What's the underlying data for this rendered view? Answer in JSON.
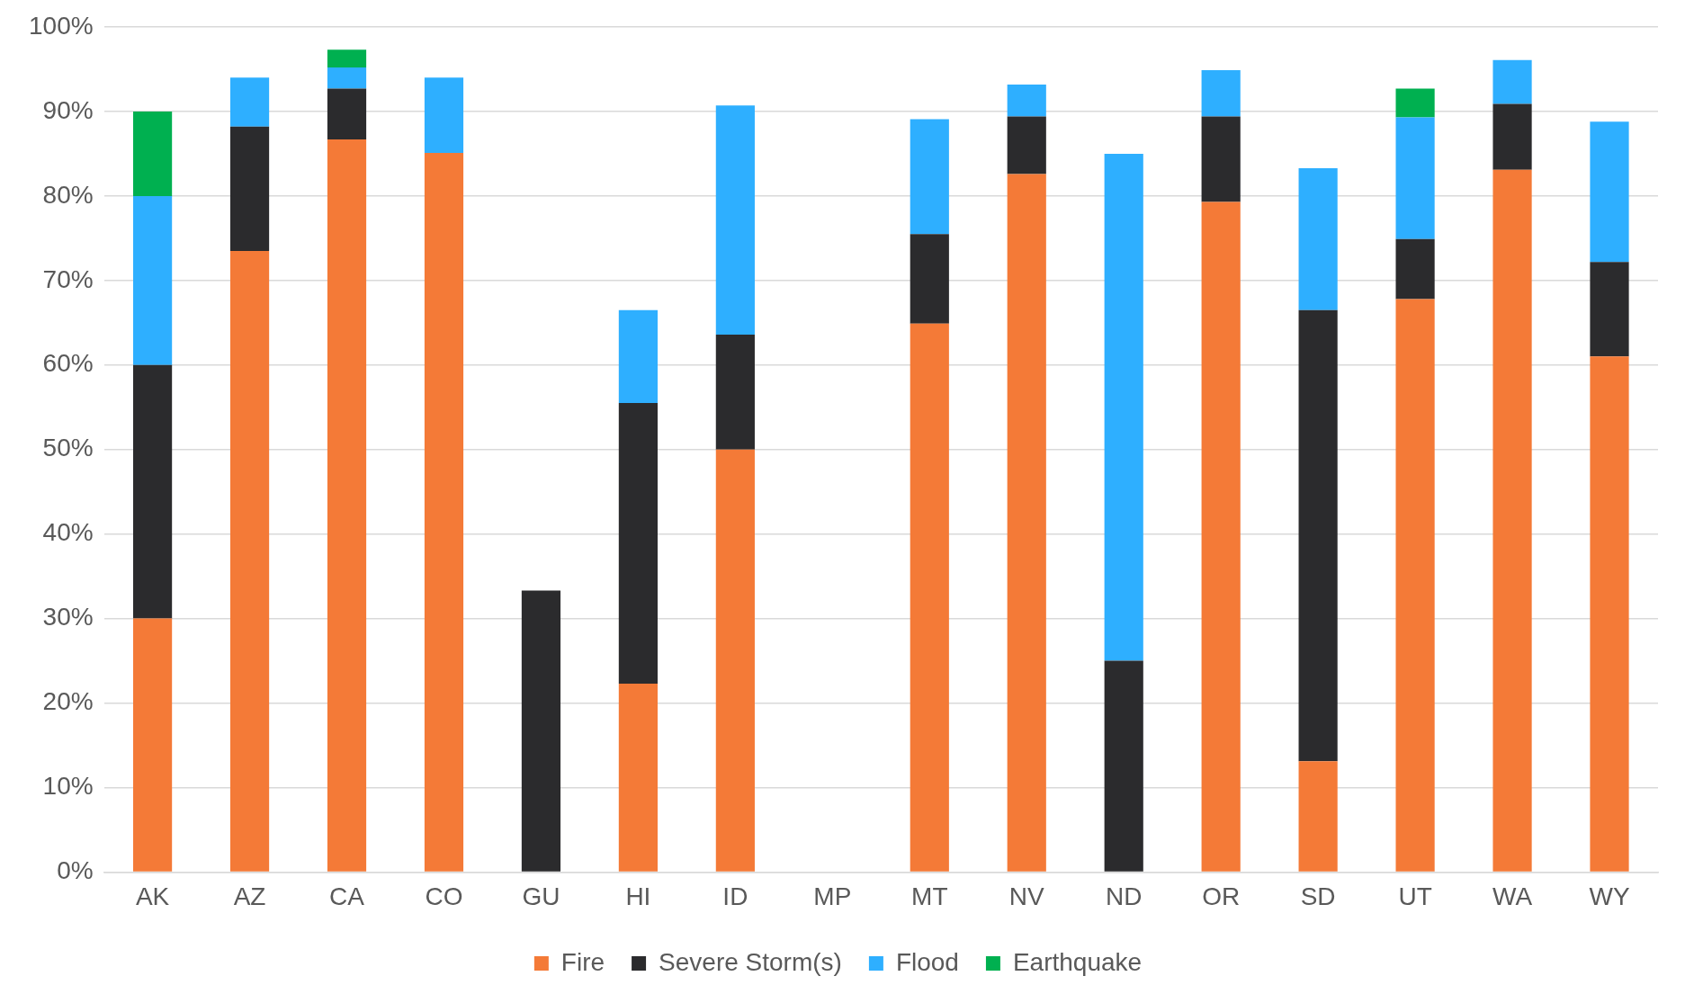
{
  "chart_data": {
    "type": "bar",
    "stacked": true,
    "categories": [
      "AK",
      "AZ",
      "CA",
      "CO",
      "GU",
      "HI",
      "ID",
      "MP",
      "MT",
      "NV",
      "ND",
      "OR",
      "SD",
      "UT",
      "WA",
      "WY"
    ],
    "series": [
      {
        "name": "Fire",
        "color": "#f47a37",
        "values": [
          30,
          73.5,
          86.7,
          85.1,
          null,
          22.3,
          50,
          null,
          64.9,
          82.6,
          null,
          79.3,
          13.1,
          67.8,
          83.1,
          61.0
        ]
      },
      {
        "name": "Severe Storm(s)",
        "color": "#2b2b2d",
        "values": [
          30,
          14.7,
          6.0,
          null,
          33.3,
          33.2,
          13.6,
          null,
          10.6,
          6.8,
          25,
          10.1,
          53.4,
          7.1,
          7.8,
          11.2
        ]
      },
      {
        "name": "Flood",
        "color": "#2eafff",
        "values": [
          20,
          5.8,
          2.5,
          8.9,
          null,
          11.0,
          27.1,
          null,
          13.6,
          3.8,
          60,
          5.5,
          16.8,
          14.4,
          5.2,
          16.6
        ]
      },
      {
        "name": "Earthquake",
        "color": "#00b050",
        "values": [
          10,
          null,
          2.1,
          null,
          null,
          null,
          null,
          null,
          null,
          null,
          null,
          null,
          null,
          3.4,
          null,
          null
        ]
      }
    ],
    "ylim": [
      0,
      100
    ],
    "yticks": [
      {
        "value": 0,
        "label": "0%"
      },
      {
        "value": 10,
        "label": "10%"
      },
      {
        "value": 20,
        "label": "20%"
      },
      {
        "value": 30,
        "label": "30%"
      },
      {
        "value": 40,
        "label": "40%"
      },
      {
        "value": 50,
        "label": "50%"
      },
      {
        "value": 60,
        "label": "60%"
      },
      {
        "value": 70,
        "label": "70%"
      },
      {
        "value": 80,
        "label": "80%"
      },
      {
        "value": 90,
        "label": "90%"
      },
      {
        "value": 100,
        "label": "100%"
      }
    ],
    "grid": "y",
    "legend": "bottom"
  }
}
